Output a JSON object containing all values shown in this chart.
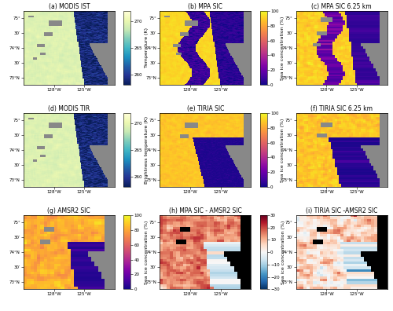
{
  "title_a": "(a) MODIS IST",
  "title_b": "(b) MPA SIC",
  "title_c": "(c) MPA SIC 6.25 km",
  "title_d": "(d) MODIS TIR",
  "title_e": "(e) TIRIA SIC",
  "title_f": "(f) TIRIA SIC 6.25 km",
  "title_g": "(g) AMSR2 SIC",
  "title_h": "(h) MPA SIC - AMSR2 SIC",
  "title_i": "(i) TIRIA SIC -AMSR2 SIC",
  "xtick_labels": [
    "128°W",
    "125°W"
  ],
  "ytick_labels": [
    "73°N",
    "30′",
    "74°N",
    "30′",
    "75°"
  ],
  "cbar_temp_label": "Temperature (K)",
  "cbar_bt_label": "Brightness temperature (K)",
  "cbar_sic_label": "Sea ice concentration (%)",
  "cbar_diff_label": "Sea ice concentration (%)",
  "temp_ticks": [
    260,
    265,
    270
  ],
  "sic_ticks": [
    0,
    20,
    40,
    60,
    80,
    100
  ],
  "diff_ticks": [
    -30,
    -20,
    -10,
    0,
    10,
    20,
    30
  ],
  "temp_vmin": 258,
  "temp_vmax": 272,
  "sic_vmin": 0,
  "sic_vmax": 100,
  "diff_vmin": -30,
  "diff_vmax": 30,
  "land_color": "#888888",
  "black_patch_color": "#000000",
  "bg_color": "#ffffff",
  "fig_width": 5.0,
  "fig_height": 3.96,
  "dpi": 100,
  "title_fontsize": 5.5,
  "tick_fontsize": 4.0,
  "cbar_label_fontsize": 4.5,
  "cbar_tick_fontsize": 4.0
}
